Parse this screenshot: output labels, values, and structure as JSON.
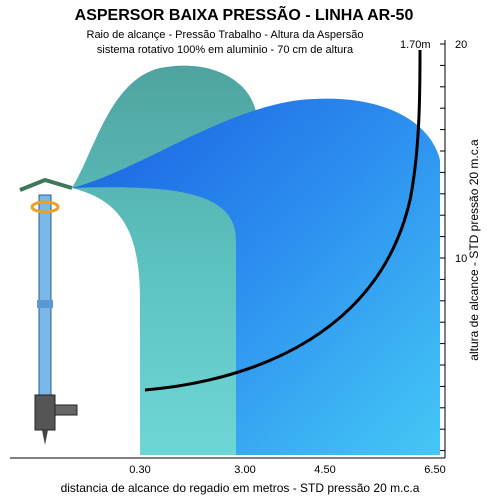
{
  "header": {
    "title": "ASPERSOR BAIXA PRESSÃO - LINHA  AR-50",
    "subtitle_lines": [
      "Raio de alcançe - Pressão Trabalho - Altura da Aspersão",
      "sistema rotativo 100% em aluminio - 70 cm de altura"
    ]
  },
  "x_axis": {
    "label": "distancia de alcance do regadio em metros  -  STD pressão 20 m.c.a",
    "ticks": [
      "0.30",
      "3.00",
      "4.50",
      "6.50"
    ]
  },
  "y_axis": {
    "label": "altura de alcance  -  STD pressão 20 m.c.a",
    "ticks": [
      "20",
      "10"
    ],
    "top_label": "1.70m"
  }
}
